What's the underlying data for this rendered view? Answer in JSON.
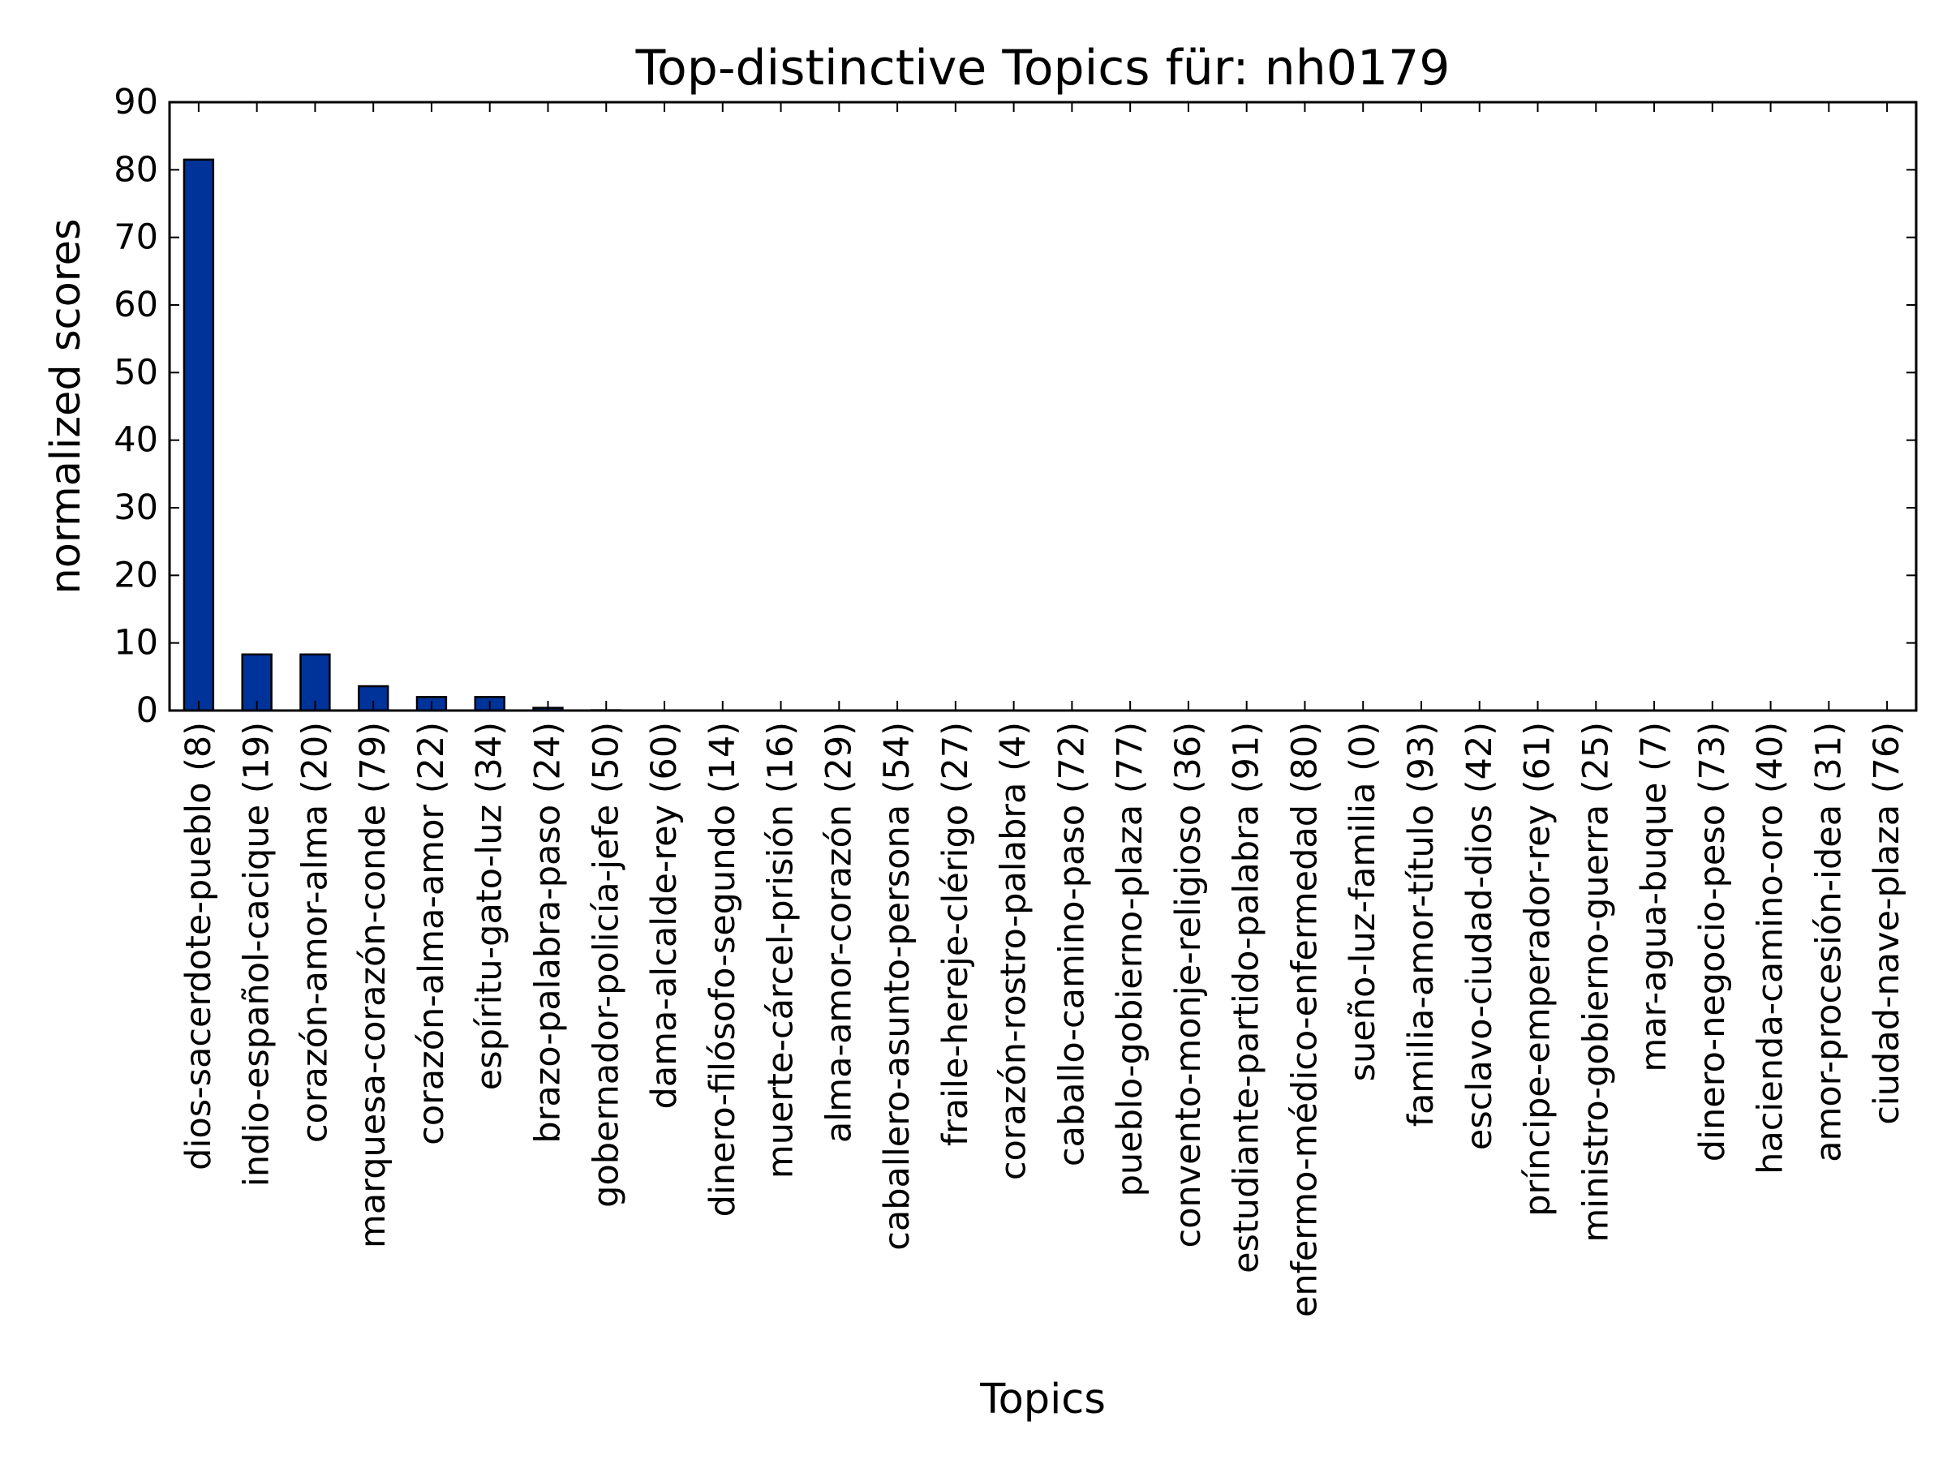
{
  "colors": {
    "bar_fill": "#003399",
    "bar_stroke": "#000000",
    "axes": "#000000",
    "background": "#ffffff"
  },
  "chart_data": {
    "type": "bar",
    "title": "Top-distinctive Topics für: nh0179",
    "xlabel": "Topics",
    "ylabel": "normalized scores",
    "ylim": [
      0,
      90
    ],
    "yticks": [
      0,
      10,
      20,
      30,
      40,
      50,
      60,
      70,
      80,
      90
    ],
    "grid": false,
    "legend": "none",
    "categories": [
      "dios-sacerdote-pueblo (8)",
      "indio-español-cacique (19)",
      "corazón-amor-alma (20)",
      "marquesa-corazón-conde (79)",
      "corazón-alma-amor (22)",
      "espíritu-gato-luz (34)",
      "brazo-palabra-paso (24)",
      "gobernador-policía-jefe (50)",
      "dama-alcalde-rey (60)",
      "dinero-filósofo-segundo (14)",
      "muerte-cárcel-prisión (16)",
      "alma-amor-corazón (29)",
      "caballero-asunto-persona (54)",
      "fraile-hereje-clérigo (27)",
      "corazón-rostro-palabra (4)",
      "caballo-camino-paso (72)",
      "pueblo-gobierno-plaza (77)",
      "convento-monje-religioso (36)",
      "estudiante-partido-palabra (91)",
      "enfermo-médico-enfermedad (80)",
      "sueño-luz-familia (0)",
      "familia-amor-título (93)",
      "esclavo-ciudad-dios (42)",
      "príncipe-emperador-rey (61)",
      "ministro-gobierno-guerra (25)",
      "mar-agua-buque (7)",
      "dinero-negocio-peso (73)",
      "hacienda-camino-oro (40)",
      "amor-procesión-idea (31)",
      "ciudad-nave-plaza (76)"
    ],
    "values": [
      81.5,
      8.3,
      8.3,
      3.6,
      2.0,
      2.0,
      0.4,
      0.05,
      0.03,
      0.02,
      0.02,
      0.02,
      0.01,
      0.01,
      0.01,
      0.01,
      0.01,
      0.01,
      0.01,
      0.01,
      0.01,
      0.01,
      0.01,
      0.01,
      0.01,
      0.01,
      0.01,
      0.01,
      0.01,
      0.01
    ]
  }
}
